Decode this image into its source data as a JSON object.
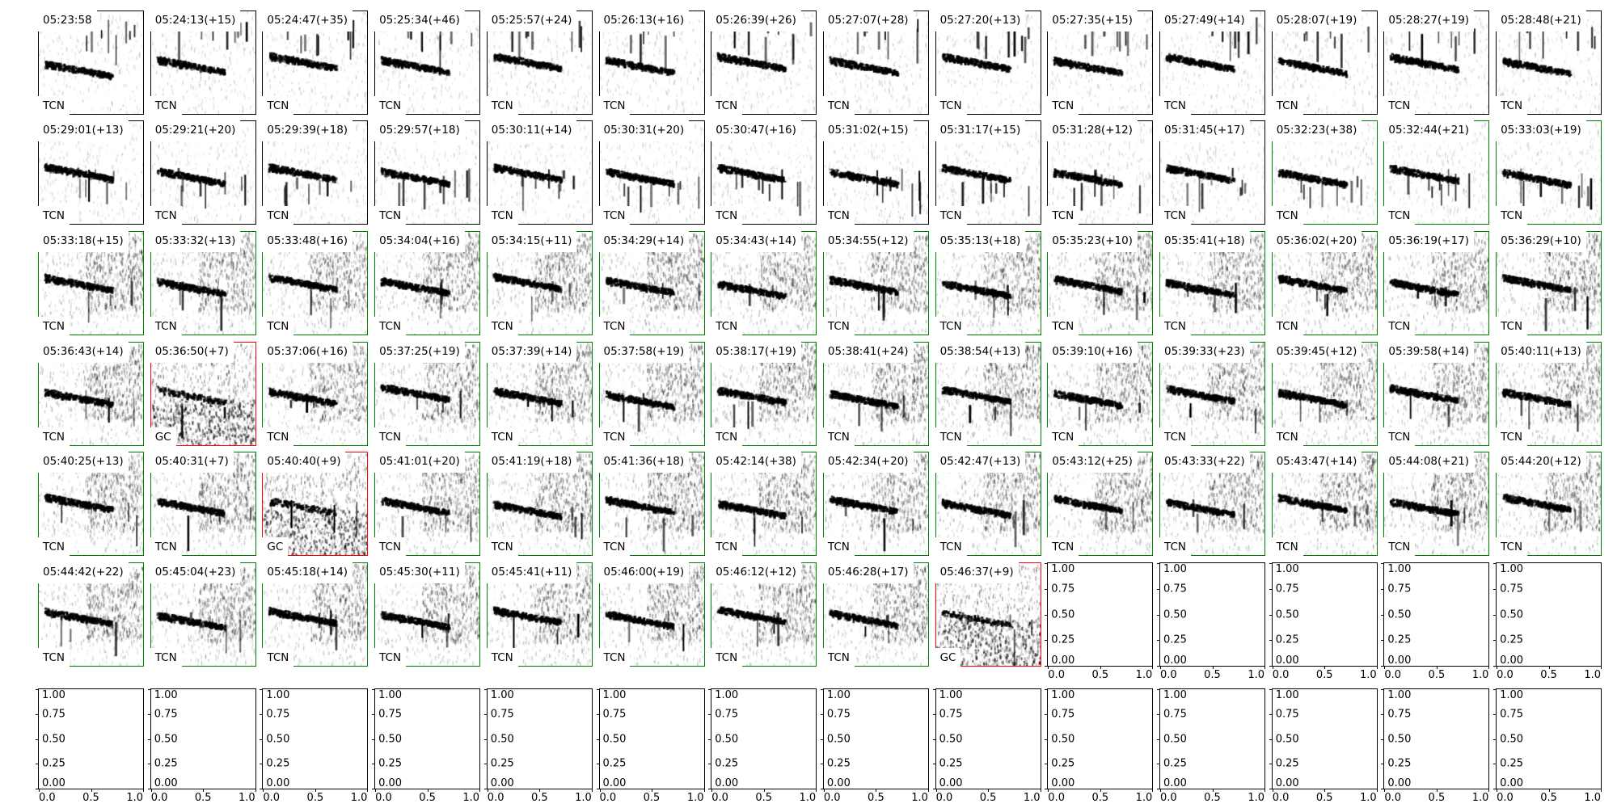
{
  "chart_data": {
    "type": "heatmap",
    "grid": {
      "rows": 7,
      "cols": 14
    },
    "edge_colors": {
      "default": "#000000",
      "green": "#008000",
      "red": "#ff0000"
    },
    "panels": [
      {
        "time": "05:23:58",
        "cls": "TCN",
        "edge": "#000000"
      },
      {
        "time": "05:24:13(+15)",
        "cls": "TCN",
        "edge": "#000000"
      },
      {
        "time": "05:24:47(+35)",
        "cls": "TCN",
        "edge": "#000000"
      },
      {
        "time": "05:25:34(+46)",
        "cls": "TCN",
        "edge": "#000000"
      },
      {
        "time": "05:25:57(+24)",
        "cls": "TCN",
        "edge": "#000000"
      },
      {
        "time": "05:26:13(+16)",
        "cls": "TCN",
        "edge": "#000000"
      },
      {
        "time": "05:26:39(+26)",
        "cls": "TCN",
        "edge": "#000000"
      },
      {
        "time": "05:27:07(+28)",
        "cls": "TCN",
        "edge": "#000000"
      },
      {
        "time": "05:27:20(+13)",
        "cls": "TCN",
        "edge": "#000000"
      },
      {
        "time": "05:27:35(+15)",
        "cls": "TCN",
        "edge": "#000000"
      },
      {
        "time": "05:27:49(+14)",
        "cls": "TCN",
        "edge": "#000000"
      },
      {
        "time": "05:28:07(+19)",
        "cls": "TCN",
        "edge": "#000000"
      },
      {
        "time": "05:28:27(+19)",
        "cls": "TCN",
        "edge": "#000000"
      },
      {
        "time": "05:28:48(+21)",
        "cls": "TCN",
        "edge": "#000000"
      },
      {
        "time": "05:29:01(+13)",
        "cls": "TCN",
        "edge": "#000000"
      },
      {
        "time": "05:29:21(+20)",
        "cls": "TCN",
        "edge": "#000000"
      },
      {
        "time": "05:29:39(+18)",
        "cls": "TCN",
        "edge": "#000000"
      },
      {
        "time": "05:29:57(+18)",
        "cls": "TCN",
        "edge": "#000000"
      },
      {
        "time": "05:30:11(+14)",
        "cls": "TCN",
        "edge": "#000000"
      },
      {
        "time": "05:30:31(+20)",
        "cls": "TCN",
        "edge": "#000000"
      },
      {
        "time": "05:30:47(+16)",
        "cls": "TCN",
        "edge": "#000000"
      },
      {
        "time": "05:31:02(+15)",
        "cls": "TCN",
        "edge": "#000000"
      },
      {
        "time": "05:31:17(+15)",
        "cls": "TCN",
        "edge": "#000000"
      },
      {
        "time": "05:31:28(+12)",
        "cls": "TCN",
        "edge": "#000000"
      },
      {
        "time": "05:31:45(+17)",
        "cls": "TCN",
        "edge": "#000000"
      },
      {
        "time": "05:32:23(+38)",
        "cls": "TCN",
        "edge": "#008000"
      },
      {
        "time": "05:32:44(+21)",
        "cls": "TCN",
        "edge": "#008000"
      },
      {
        "time": "05:33:03(+19)",
        "cls": "TCN",
        "edge": "#008000"
      },
      {
        "time": "05:33:18(+15)",
        "cls": "TCN",
        "edge": "#008000"
      },
      {
        "time": "05:33:32(+13)",
        "cls": "TCN",
        "edge": "#008000"
      },
      {
        "time": "05:33:48(+16)",
        "cls": "TCN",
        "edge": "#008000"
      },
      {
        "time": "05:34:04(+16)",
        "cls": "TCN",
        "edge": "#008000"
      },
      {
        "time": "05:34:15(+11)",
        "cls": "TCN",
        "edge": "#008000"
      },
      {
        "time": "05:34:29(+14)",
        "cls": "TCN",
        "edge": "#008000"
      },
      {
        "time": "05:34:43(+14)",
        "cls": "TCN",
        "edge": "#008000"
      },
      {
        "time": "05:34:55(+12)",
        "cls": "TCN",
        "edge": "#008000"
      },
      {
        "time": "05:35:13(+18)",
        "cls": "TCN",
        "edge": "#008000"
      },
      {
        "time": "05:35:23(+10)",
        "cls": "TCN",
        "edge": "#008000"
      },
      {
        "time": "05:35:41(+18)",
        "cls": "TCN",
        "edge": "#008000"
      },
      {
        "time": "05:36:02(+20)",
        "cls": "TCN",
        "edge": "#008000"
      },
      {
        "time": "05:36:19(+17)",
        "cls": "TCN",
        "edge": "#008000"
      },
      {
        "time": "05:36:29(+10)",
        "cls": "TCN",
        "edge": "#008000"
      },
      {
        "time": "05:36:43(+14)",
        "cls": "TCN",
        "edge": "#008000"
      },
      {
        "time": "05:36:50(+7)",
        "cls": "GC",
        "edge": "#ff0000"
      },
      {
        "time": "05:37:06(+16)",
        "cls": "TCN",
        "edge": "#008000"
      },
      {
        "time": "05:37:25(+19)",
        "cls": "TCN",
        "edge": "#008000"
      },
      {
        "time": "05:37:39(+14)",
        "cls": "TCN",
        "edge": "#008000"
      },
      {
        "time": "05:37:58(+19)",
        "cls": "TCN",
        "edge": "#008000"
      },
      {
        "time": "05:38:17(+19)",
        "cls": "TCN",
        "edge": "#008000"
      },
      {
        "time": "05:38:41(+24)",
        "cls": "TCN",
        "edge": "#008000"
      },
      {
        "time": "05:38:54(+13)",
        "cls": "TCN",
        "edge": "#008000"
      },
      {
        "time": "05:39:10(+16)",
        "cls": "TCN",
        "edge": "#008000"
      },
      {
        "time": "05:39:33(+23)",
        "cls": "TCN",
        "edge": "#008000"
      },
      {
        "time": "05:39:45(+12)",
        "cls": "TCN",
        "edge": "#008000"
      },
      {
        "time": "05:39:58(+14)",
        "cls": "TCN",
        "edge": "#008000"
      },
      {
        "time": "05:40:11(+13)",
        "cls": "TCN",
        "edge": "#008000"
      },
      {
        "time": "05:40:25(+13)",
        "cls": "TCN",
        "edge": "#008000"
      },
      {
        "time": "05:40:31(+7)",
        "cls": "TCN",
        "edge": "#008000"
      },
      {
        "time": "05:40:40(+9)",
        "cls": "GC",
        "edge": "#ff0000"
      },
      {
        "time": "05:41:01(+20)",
        "cls": "TCN",
        "edge": "#008000"
      },
      {
        "time": "05:41:19(+18)",
        "cls": "TCN",
        "edge": "#008000"
      },
      {
        "time": "05:41:36(+18)",
        "cls": "TCN",
        "edge": "#008000"
      },
      {
        "time": "05:42:14(+38)",
        "cls": "TCN",
        "edge": "#008000"
      },
      {
        "time": "05:42:34(+20)",
        "cls": "TCN",
        "edge": "#008000"
      },
      {
        "time": "05:42:47(+13)",
        "cls": "TCN",
        "edge": "#008000"
      },
      {
        "time": "05:43:12(+25)",
        "cls": "TCN",
        "edge": "#008000"
      },
      {
        "time": "05:43:33(+22)",
        "cls": "TCN",
        "edge": "#008000"
      },
      {
        "time": "05:43:47(+14)",
        "cls": "TCN",
        "edge": "#008000"
      },
      {
        "time": "05:44:08(+21)",
        "cls": "TCN",
        "edge": "#008000"
      },
      {
        "time": "05:44:20(+12)",
        "cls": "TCN",
        "edge": "#008000"
      },
      {
        "time": "05:44:42(+22)",
        "cls": "TCN",
        "edge": "#008000"
      },
      {
        "time": "05:45:04(+23)",
        "cls": "TCN",
        "edge": "#008000"
      },
      {
        "time": "05:45:18(+14)",
        "cls": "TCN",
        "edge": "#008000"
      },
      {
        "time": "05:45:30(+11)",
        "cls": "TCN",
        "edge": "#008000"
      },
      {
        "time": "05:45:41(+11)",
        "cls": "TCN",
        "edge": "#008000"
      },
      {
        "time": "05:46:00(+19)",
        "cls": "TCN",
        "edge": "#008000"
      },
      {
        "time": "05:46:12(+12)",
        "cls": "TCN",
        "edge": "#008000"
      },
      {
        "time": "05:46:28(+17)",
        "cls": "TCN",
        "edge": "#008000"
      },
      {
        "time": "05:46:37(+9)",
        "cls": "GC",
        "edge": "#ff0000"
      }
    ],
    "empty_axes": {
      "count": 19,
      "xlim": [
        0,
        1
      ],
      "ylim": [
        0,
        1
      ],
      "yticks": [
        "0.00",
        "0.25",
        "0.50",
        "0.75",
        "1.00"
      ],
      "xticks": [
        "0.0",
        "0.5",
        "1.0"
      ]
    }
  }
}
